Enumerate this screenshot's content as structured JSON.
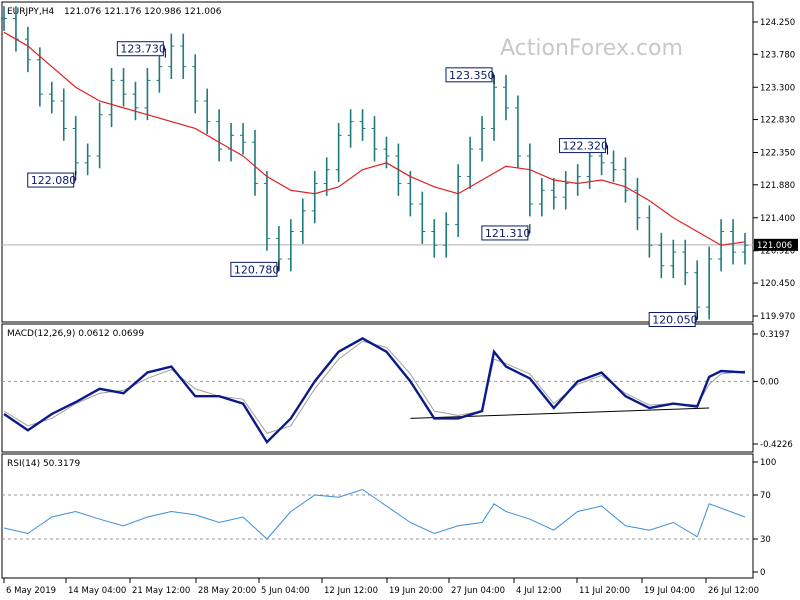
{
  "header": {
    "symbol": "EURJPY,H4",
    "ohlc": "121.076 121.176 120.986 121.006"
  },
  "watermark": "ActionForex.com",
  "colors": {
    "bars": "#1f7a7a",
    "sma": "#e02020",
    "macd": "#0a1a8a",
    "signal": "#a0a0a0",
    "rsi": "#3a8fd8",
    "annotation_border": "#0b1a6a",
    "price_marker_bg": "#000000"
  },
  "chart_data": [
    {
      "type": "line",
      "panel": "price",
      "title": "EURJPY,H4",
      "ylim": [
        119.97,
        124.25
      ],
      "y_ticks": [
        "124.250",
        "123.780",
        "123.300",
        "122.830",
        "122.350",
        "121.880",
        "121.400",
        "120.920",
        "120.450",
        "119.970"
      ],
      "current_price_label": "121.006",
      "current_price": 121.006,
      "series": [
        {
          "style": "ohlc-bars",
          "points": [
            [
              0,
              124.3
            ],
            [
              2,
              124.0
            ],
            [
              4,
              123.7
            ],
            [
              6,
              123.2
            ],
            [
              8,
              123.1
            ],
            [
              10,
              122.7
            ],
            [
              12,
              122.2
            ],
            [
              14,
              122.3
            ],
            [
              16,
              122.9
            ],
            [
              18,
              123.4
            ],
            [
              20,
              123.2
            ],
            [
              22,
              123.0
            ],
            [
              24,
              123.4
            ],
            [
              26,
              123.6
            ],
            [
              28,
              123.9
            ],
            [
              30,
              123.6
            ],
            [
              32,
              123.1
            ],
            [
              34,
              122.8
            ],
            [
              36,
              122.4
            ],
            [
              38,
              122.6
            ],
            [
              40,
              122.5
            ],
            [
              42,
              121.9
            ],
            [
              44,
              121.1
            ],
            [
              46,
              120.8
            ],
            [
              48,
              121.2
            ],
            [
              50,
              121.5
            ],
            [
              52,
              121.9
            ],
            [
              54,
              122.1
            ],
            [
              56,
              122.6
            ],
            [
              58,
              122.8
            ],
            [
              60,
              122.7
            ],
            [
              62,
              122.4
            ],
            [
              64,
              122.3
            ],
            [
              66,
              121.9
            ],
            [
              68,
              121.6
            ],
            [
              70,
              121.2
            ],
            [
              72,
              121.0
            ],
            [
              74,
              121.3
            ],
            [
              76,
              122.0
            ],
            [
              78,
              122.4
            ],
            [
              80,
              122.7
            ],
            [
              82,
              123.3
            ],
            [
              84,
              123.0
            ],
            [
              86,
              122.3
            ],
            [
              88,
              121.6
            ],
            [
              90,
              121.8
            ],
            [
              92,
              121.7
            ],
            [
              94,
              121.9
            ],
            [
              96,
              122.0
            ],
            [
              98,
              122.3
            ],
            [
              100,
              122.2
            ],
            [
              102,
              122.1
            ],
            [
              104,
              121.8
            ],
            [
              106,
              121.4
            ],
            [
              108,
              121.0
            ],
            [
              110,
              120.7
            ],
            [
              112,
              120.9
            ],
            [
              114,
              120.6
            ],
            [
              116,
              120.1
            ],
            [
              118,
              120.8
            ],
            [
              120,
              121.2
            ],
            [
              122,
              120.9
            ],
            [
              124,
              121.0
            ]
          ]
        },
        {
          "name": "SMA",
          "style": "line",
          "points": [
            [
              0,
              124.1
            ],
            [
              4,
              123.9
            ],
            [
              8,
              123.6
            ],
            [
              12,
              123.3
            ],
            [
              16,
              123.1
            ],
            [
              20,
              123.0
            ],
            [
              24,
              122.9
            ],
            [
              28,
              122.8
            ],
            [
              32,
              122.7
            ],
            [
              36,
              122.5
            ],
            [
              40,
              122.3
            ],
            [
              44,
              122.0
            ],
            [
              48,
              121.8
            ],
            [
              52,
              121.75
            ],
            [
              56,
              121.85
            ],
            [
              60,
              122.1
            ],
            [
              64,
              122.2
            ],
            [
              68,
              122.0
            ],
            [
              72,
              121.85
            ],
            [
              76,
              121.75
            ],
            [
              80,
              121.95
            ],
            [
              84,
              122.15
            ],
            [
              88,
              122.1
            ],
            [
              92,
              121.95
            ],
            [
              96,
              121.9
            ],
            [
              100,
              121.95
            ],
            [
              104,
              121.85
            ],
            [
              108,
              121.65
            ],
            [
              112,
              121.4
            ],
            [
              116,
              121.2
            ],
            [
              120,
              121.0
            ],
            [
              124,
              121.05
            ]
          ]
        }
      ],
      "annotations": [
        {
          "label": "123.730",
          "x": 27,
          "y": 123.73
        },
        {
          "label": "122.080",
          "x": 12,
          "y": 122.08
        },
        {
          "label": "120.780",
          "x": 46,
          "y": 120.78
        },
        {
          "label": "123.350",
          "x": 82,
          "y": 123.35
        },
        {
          "label": "121.310",
          "x": 88,
          "y": 121.31
        },
        {
          "label": "122.320",
          "x": 101,
          "y": 122.32
        },
        {
          "label": "120.050",
          "x": 116,
          "y": 120.05
        }
      ]
    },
    {
      "type": "line",
      "panel": "macd",
      "title": "MACD(12,26,9) 0.0612 0.0699",
      "ylim": [
        -0.4226,
        0.3197
      ],
      "y_ticks": [
        "0.3197",
        "0.00",
        "-0.4226"
      ],
      "series": [
        {
          "name": "MACD",
          "points": [
            [
              0,
              -0.22
            ],
            [
              4,
              -0.33
            ],
            [
              8,
              -0.22
            ],
            [
              12,
              -0.14
            ],
            [
              16,
              -0.05
            ],
            [
              20,
              -0.08
            ],
            [
              24,
              0.06
            ],
            [
              28,
              0.1
            ],
            [
              32,
              -0.1
            ],
            [
              36,
              -0.1
            ],
            [
              40,
              -0.15
            ],
            [
              44,
              -0.41
            ],
            [
              48,
              -0.25
            ],
            [
              52,
              0.0
            ],
            [
              56,
              0.2
            ],
            [
              60,
              0.29
            ],
            [
              64,
              0.2
            ],
            [
              68,
              0.0
            ],
            [
              72,
              -0.25
            ],
            [
              76,
              -0.25
            ],
            [
              80,
              -0.2
            ],
            [
              82,
              0.2
            ],
            [
              84,
              0.1
            ],
            [
              88,
              0.02
            ],
            [
              92,
              -0.18
            ],
            [
              96,
              0.0
            ],
            [
              100,
              0.06
            ],
            [
              104,
              -0.1
            ],
            [
              108,
              -0.18
            ],
            [
              112,
              -0.15
            ],
            [
              116,
              -0.17
            ],
            [
              118,
              0.03
            ],
            [
              120,
              0.07
            ],
            [
              124,
              0.06
            ]
          ]
        },
        {
          "name": "Signal",
          "points": [
            [
              0,
              -0.2
            ],
            [
              4,
              -0.3
            ],
            [
              8,
              -0.25
            ],
            [
              12,
              -0.15
            ],
            [
              16,
              -0.08
            ],
            [
              20,
              -0.06
            ],
            [
              24,
              0.02
            ],
            [
              28,
              0.08
            ],
            [
              32,
              -0.05
            ],
            [
              36,
              -0.1
            ],
            [
              40,
              -0.12
            ],
            [
              44,
              -0.35
            ],
            [
              48,
              -0.3
            ],
            [
              52,
              -0.05
            ],
            [
              56,
              0.15
            ],
            [
              60,
              0.27
            ],
            [
              64,
              0.23
            ],
            [
              68,
              0.05
            ],
            [
              72,
              -0.2
            ],
            [
              76,
              -0.23
            ],
            [
              80,
              -0.2
            ],
            [
              82,
              0.15
            ],
            [
              84,
              0.12
            ],
            [
              88,
              0.05
            ],
            [
              92,
              -0.15
            ],
            [
              96,
              -0.02
            ],
            [
              100,
              0.04
            ],
            [
              104,
              -0.08
            ],
            [
              108,
              -0.16
            ],
            [
              112,
              -0.15
            ],
            [
              116,
              -0.16
            ],
            [
              118,
              -0.02
            ],
            [
              120,
              0.05
            ],
            [
              124,
              0.07
            ]
          ]
        }
      ]
    },
    {
      "type": "line",
      "panel": "rsi",
      "title": "RSI(14) 50.3179",
      "ylim": [
        0,
        100
      ],
      "y_ticks": [
        "100",
        "70",
        "30",
        "0"
      ],
      "series": [
        {
          "name": "RSI",
          "points": [
            [
              0,
              40
            ],
            [
              4,
              35
            ],
            [
              8,
              50
            ],
            [
              12,
              55
            ],
            [
              16,
              48
            ],
            [
              20,
              42
            ],
            [
              24,
              50
            ],
            [
              28,
              55
            ],
            [
              32,
              52
            ],
            [
              36,
              45
            ],
            [
              40,
              50
            ],
            [
              44,
              30
            ],
            [
              48,
              55
            ],
            [
              52,
              70
            ],
            [
              56,
              68
            ],
            [
              60,
              75
            ],
            [
              64,
              60
            ],
            [
              68,
              45
            ],
            [
              72,
              35
            ],
            [
              76,
              42
            ],
            [
              80,
              45
            ],
            [
              82,
              62
            ],
            [
              84,
              55
            ],
            [
              88,
              48
            ],
            [
              92,
              38
            ],
            [
              96,
              55
            ],
            [
              100,
              60
            ],
            [
              104,
              42
            ],
            [
              108,
              38
            ],
            [
              112,
              45
            ],
            [
              116,
              32
            ],
            [
              118,
              62
            ],
            [
              120,
              58
            ],
            [
              124,
              50
            ]
          ]
        }
      ]
    }
  ],
  "x_axis": {
    "labels": [
      "6 May 2019",
      "14 May 04:00",
      "21 May 12:00",
      "28 May 20:00",
      "5 Jun 04:00",
      "12 Jun 12:00",
      "19 Jun 20:00",
      "27 Jun 04:00",
      "4 Jul 12:00",
      "11 Jul 20:00",
      "19 Jul 04:00",
      "26 Jul 12:00"
    ]
  }
}
